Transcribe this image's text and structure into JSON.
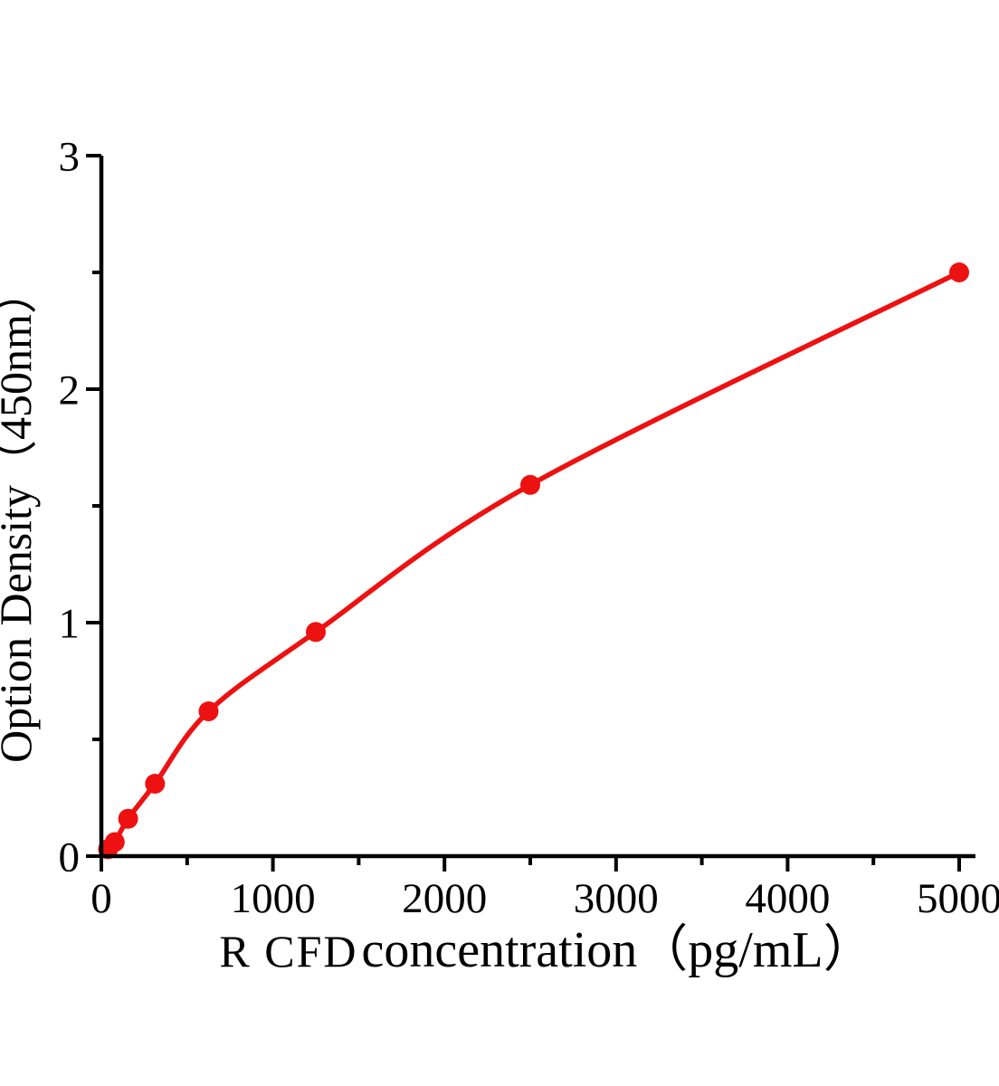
{
  "chart_data": {
    "type": "scatter",
    "series": [
      {
        "name": "standard-curve",
        "x": [
          39.06,
          78.13,
          156.25,
          312.5,
          625,
          1250,
          2500,
          5000
        ],
        "y": [
          0.03,
          0.06,
          0.16,
          0.31,
          0.62,
          0.96,
          1.59,
          2.5
        ]
      }
    ],
    "marker": "filled-circle",
    "line": "smooth-fit-through-points",
    "xlabel_prefix": "R CFD",
    "xlabel_rest": " concentration（pg/mL）",
    "ylabel": "Option Density（450nm）",
    "xlim": [
      0,
      5000
    ],
    "ylim": [
      0,
      3
    ],
    "x_major_ticks": [
      0,
      1000,
      2000,
      3000,
      4000,
      5000
    ],
    "x_minor_ticks": [
      500,
      1500,
      2500,
      3500,
      4500
    ],
    "x_tick_labels": [
      "0",
      "1000",
      "2000",
      "3000",
      "4000",
      "5000"
    ],
    "y_major_ticks": [
      0,
      1,
      2,
      3
    ],
    "y_minor_ticks": [
      0.5,
      1.5,
      2.5
    ],
    "y_tick_labels": [
      "0",
      "1",
      "2",
      "3"
    ],
    "grid": false,
    "legend": "none",
    "colors": {
      "curve": "#ee1111",
      "marker": "#ee1111",
      "axis": "#000000",
      "background": "#ffffff"
    }
  }
}
